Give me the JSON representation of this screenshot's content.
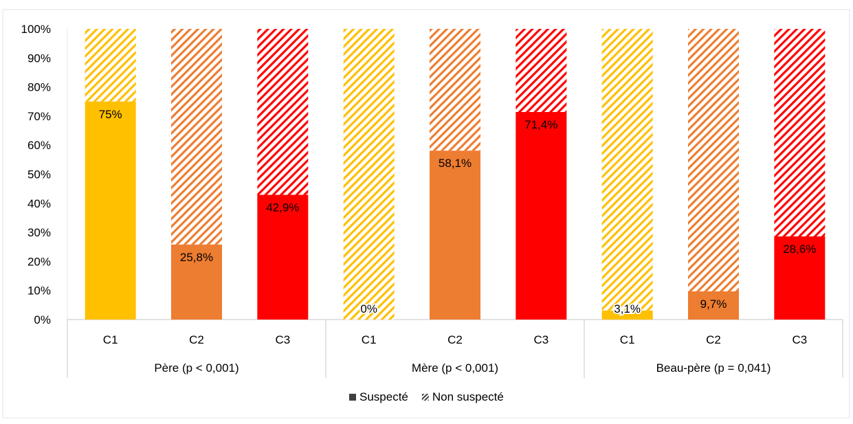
{
  "chart_data": {
    "type": "bar",
    "stacked": true,
    "percent_scale": true,
    "y_ticks": [
      "0%",
      "10%",
      "20%",
      "30%",
      "40%",
      "50%",
      "60%",
      "70%",
      "80%",
      "90%",
      "100%"
    ],
    "ylim": [
      0,
      100
    ],
    "grid": false,
    "groups": [
      {
        "label": "Père (p < 0,001)",
        "bars": [
          {
            "category": "C1",
            "suspect": 75,
            "label": "75%",
            "color": "#FFC000"
          },
          {
            "category": "C2",
            "suspect": 25.8,
            "label": "25,8%",
            "color": "#ED7D31"
          },
          {
            "category": "C3",
            "suspect": 42.9,
            "label": "42,9%",
            "color": "#FF0000"
          }
        ]
      },
      {
        "label": "Mère (p < 0,001)",
        "bars": [
          {
            "category": "C1",
            "suspect": 0,
            "label": "0%",
            "color": "#FFC000"
          },
          {
            "category": "C2",
            "suspect": 58.1,
            "label": "58,1%",
            "color": "#ED7D31"
          },
          {
            "category": "C3",
            "suspect": 71.4,
            "label": "71,4%",
            "color": "#FF0000"
          }
        ]
      },
      {
        "label": "Beau-père (p =  0,041)",
        "bars": [
          {
            "category": "C1",
            "suspect": 3.1,
            "label": "3,1%",
            "color": "#FFC000"
          },
          {
            "category": "C2",
            "suspect": 9.7,
            "label": "9,7%",
            "color": "#ED7D31"
          },
          {
            "category": "C3",
            "suspect": 28.6,
            "label": "28,6%",
            "color": "#FF0000"
          }
        ]
      }
    ],
    "legend": {
      "position": "bottom",
      "items": [
        {
          "name": "Suspecté",
          "style": "solid"
        },
        {
          "name": "Non suspecté",
          "style": "hatched"
        }
      ]
    }
  }
}
